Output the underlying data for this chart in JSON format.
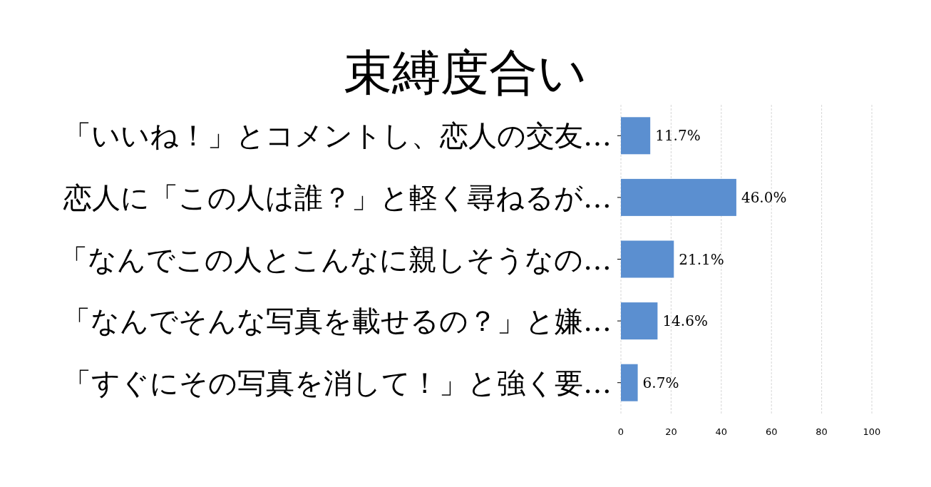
{
  "chart_data": {
    "type": "bar",
    "orientation": "horizontal",
    "title": "束縛度合い",
    "categories": [
      "「いいね！」とコメントし、恋人の交友…",
      "恋人に「この人は誰？」と軽く尋ねるが…",
      "「なんでこの人とこんなに親しそうなの…",
      "「なんでそんな写真を載せるの？」と嫌…",
      "「すぐにその写真を消して！」と強く要…"
    ],
    "values": [
      11.7,
      46.0,
      21.1,
      14.6,
      6.7
    ],
    "value_labels": [
      "11.7%",
      "46.0%",
      "21.1%",
      "14.6%",
      "6.7%"
    ],
    "color": "#5b8fd0",
    "xlim": [
      0,
      100
    ],
    "xticks": [
      0,
      20,
      40,
      60,
      80,
      100
    ],
    "grid": "x"
  }
}
